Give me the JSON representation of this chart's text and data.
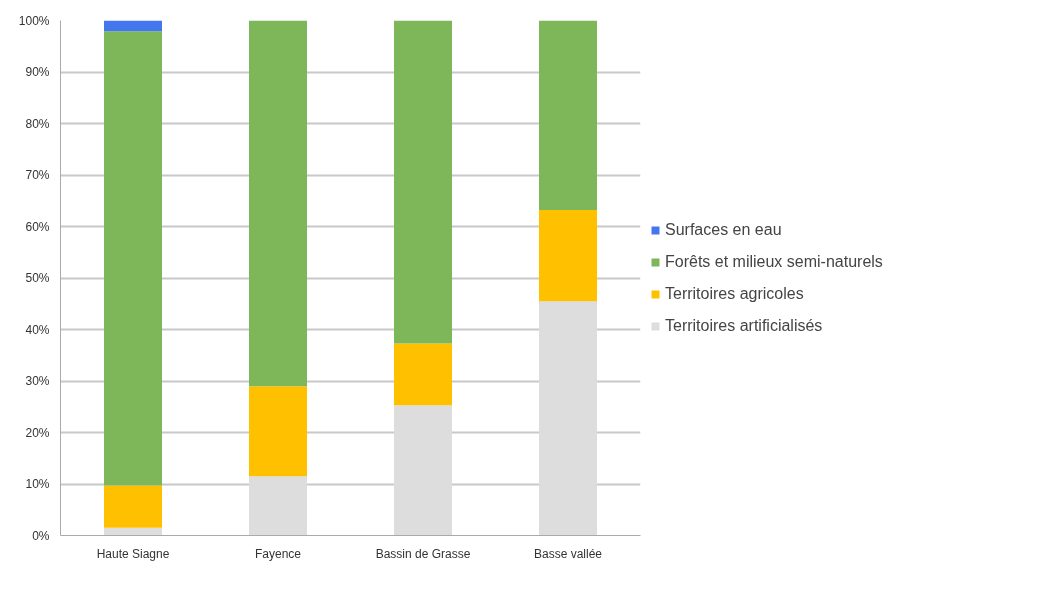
{
  "chart_data": {
    "type": "bar",
    "stacked": true,
    "categories": [
      "Haute Siagne",
      "Fayence",
      "Bassin de Grasse",
      "Basse vallée"
    ],
    "series": [
      {
        "name": "Territoires artificialisés",
        "color": "#dddddd",
        "values": [
          1.5,
          11.5,
          25.3,
          45.5
        ]
      },
      {
        "name": "Territoires agricoles",
        "color": "#ffc000",
        "values": [
          8.2,
          17.5,
          12,
          17.7
        ]
      },
      {
        "name": "Forêts et milieux semi-naturels",
        "color": "#7eb65a",
        "values": [
          88.2,
          71,
          62.7,
          36.8
        ]
      },
      {
        "name": "Surfaces en eau",
        "color": "#4477ee",
        "values": [
          2.1,
          0,
          0,
          0
        ]
      }
    ],
    "ylim": [
      0,
      100
    ],
    "yticks": [
      {
        "value": 0,
        "label": "0%"
      },
      {
        "value": 10,
        "label": "10%"
      },
      {
        "value": 20,
        "label": "20%"
      },
      {
        "value": 30,
        "label": "30%"
      },
      {
        "value": 40,
        "label": "40%"
      },
      {
        "value": 50,
        "label": "50%"
      },
      {
        "value": 60,
        "label": "60%"
      },
      {
        "value": 70,
        "label": "70%"
      },
      {
        "value": 80,
        "label": "80%"
      },
      {
        "value": 90,
        "label": "90%"
      },
      {
        "value": 100,
        "label": "100%"
      }
    ],
    "grid": "y",
    "legend": "right"
  }
}
